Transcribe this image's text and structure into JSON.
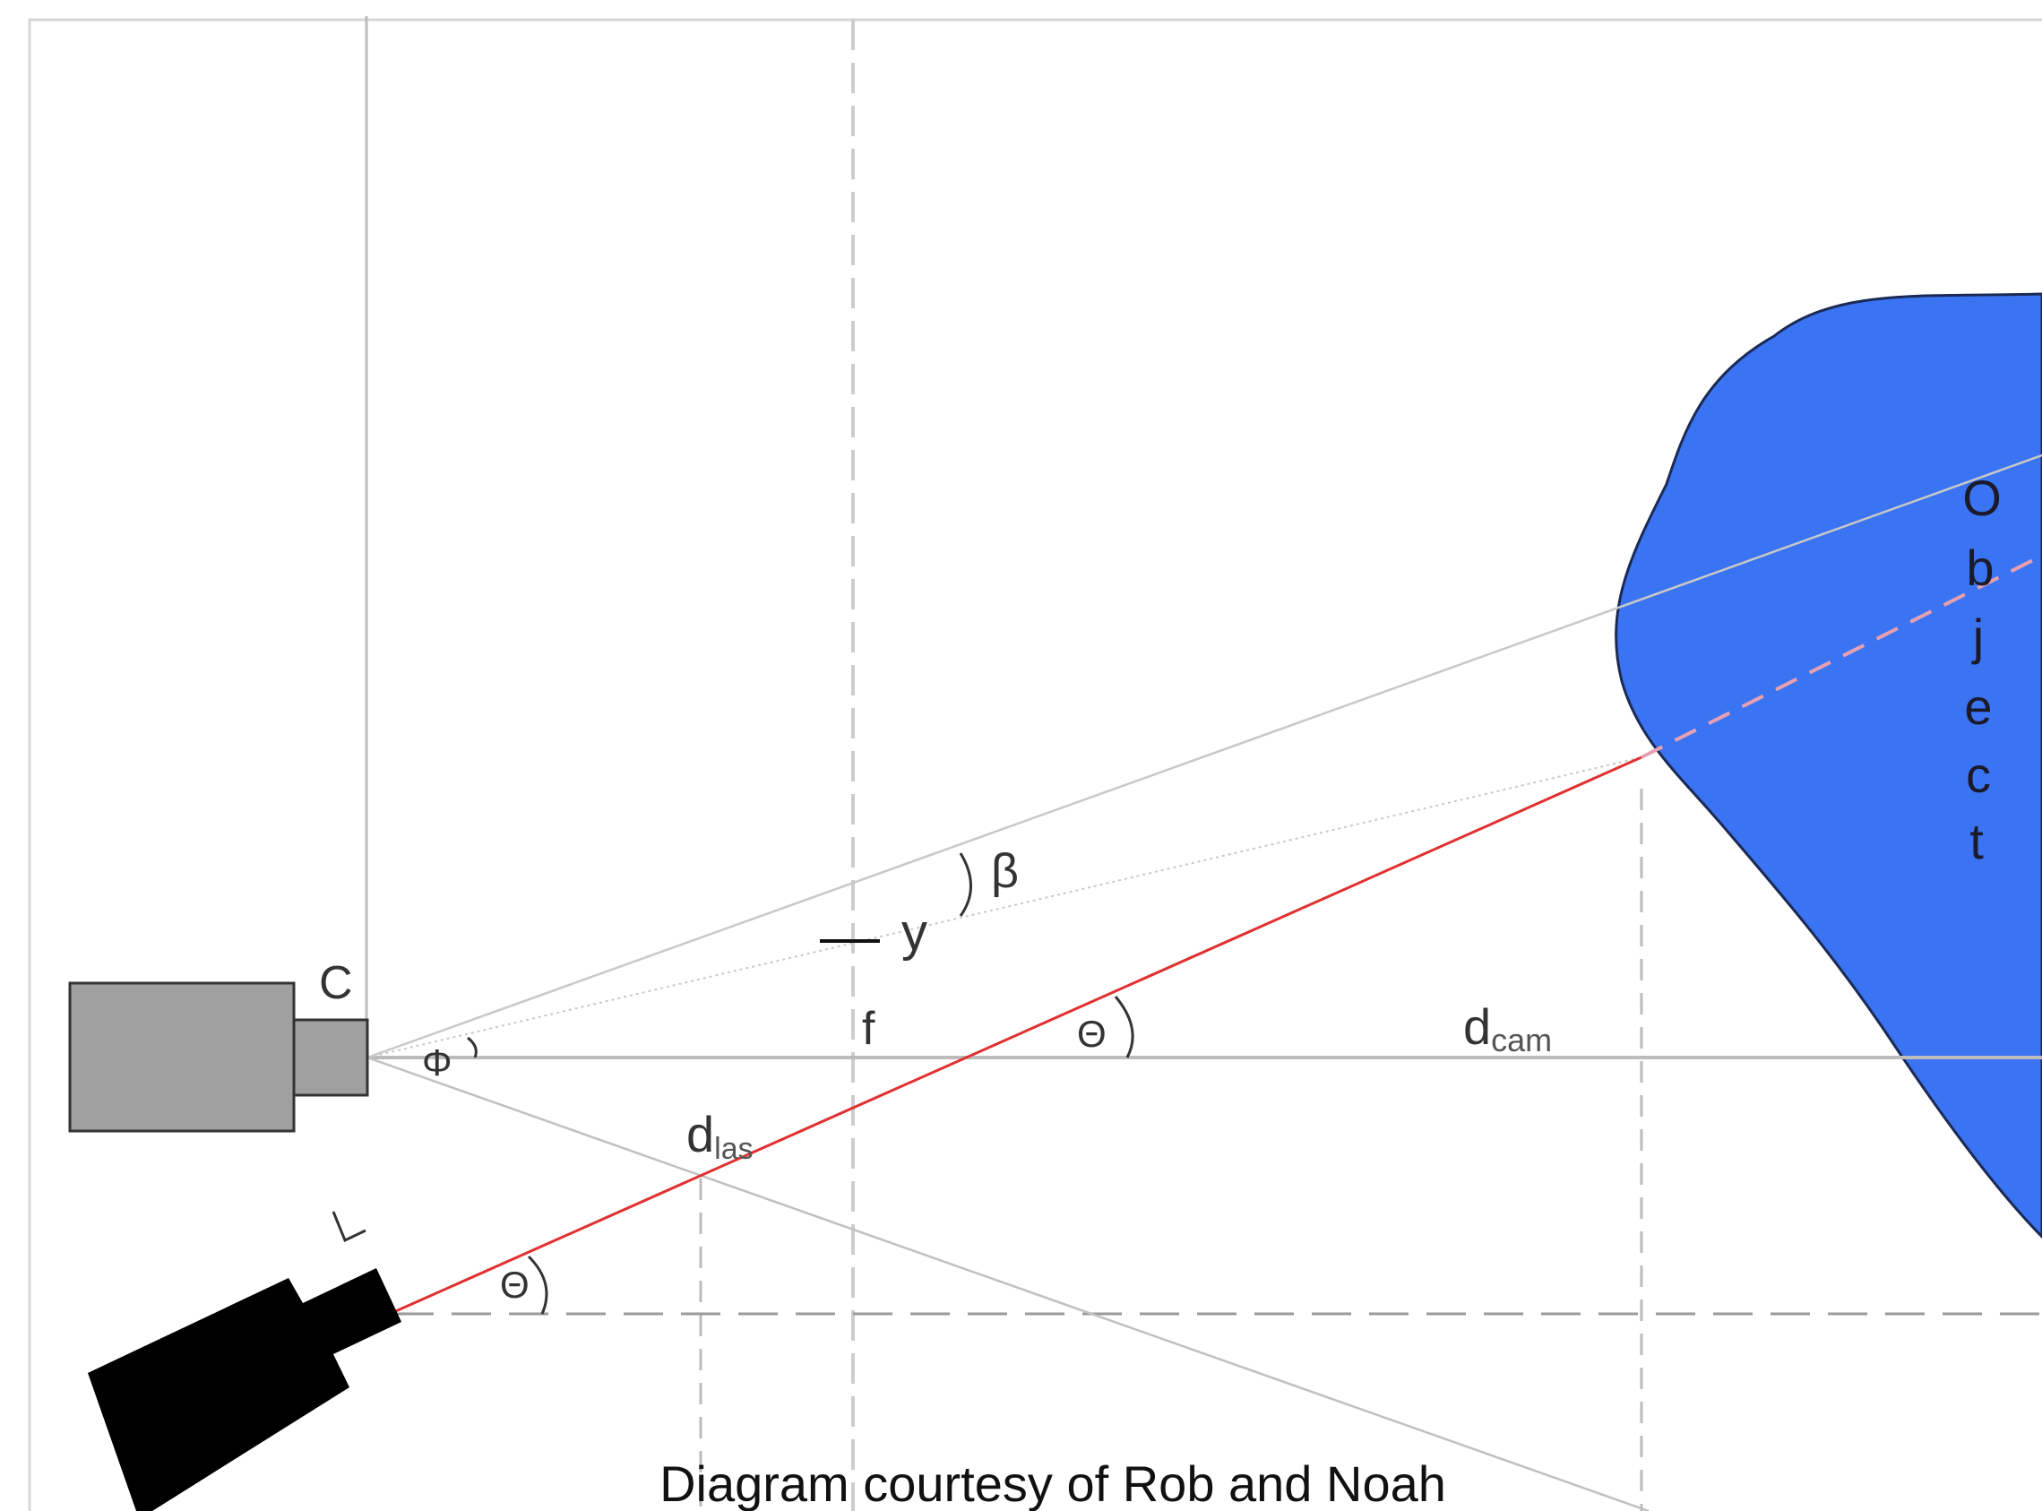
{
  "labels": {
    "camera": "C",
    "laser": "L",
    "focal_length": "f",
    "image_offset": "y",
    "view_angle": "Φ",
    "beta": "β",
    "theta_upper": "Θ",
    "theta_lower": "Θ",
    "d_cam_main": "d",
    "d_cam_sub": "cam",
    "d_las_main": "d",
    "d_las_sub": "las",
    "object_letters": [
      "O",
      "b",
      "j",
      "e",
      "c",
      "t"
    ]
  },
  "caption": "Diagram courtesy of Rob and Noah",
  "colors": {
    "object_fill": "#3b74f2",
    "laser_line": "#e03030",
    "camera_body": "#a0a0a0",
    "laser_body": "#000000",
    "construction_lines": "#c8c8c8"
  }
}
